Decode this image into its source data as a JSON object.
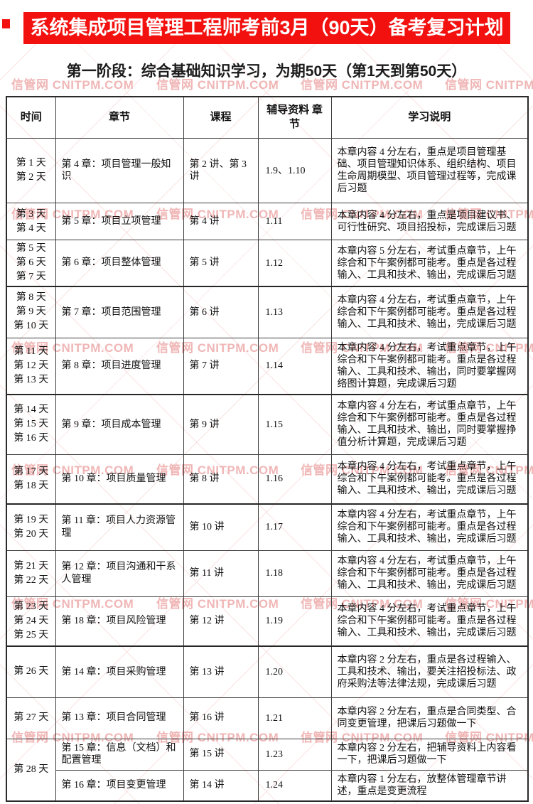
{
  "banner": {
    "title": "系统集成项目管理工程师考前3月（90天）备考复习计划",
    "bg_color": "#f2110f",
    "text_color": "#ffffff"
  },
  "subtitle": "第一阶段：综合基础知识学习，为期50天（第1天到第50天）",
  "watermark": {
    "text": "信管网 CNITPM.COM",
    "color": "#e47a7a"
  },
  "table": {
    "headers": [
      "时间",
      "章节",
      "课程",
      "辅导资料 章节",
      "学习说明"
    ],
    "rows": [
      {
        "time": [
          "第 1 天",
          "第 2 天"
        ],
        "chapter": "第 4 章：项目管理一般知识",
        "course": "第 2 讲、第 3 讲",
        "material": "1.9、1.10",
        "note": "本章内容 4 分左右，重点是项目管理基础、项目管理知识体系、组织结构、项目生命周期模型、项目管理过程等，完成课后习题"
      },
      {
        "time": [
          "第 3 天",
          "第 4 天"
        ],
        "chapter": "第 5 章：项目立项管理",
        "course": "第 4 讲",
        "material": "1.11",
        "note": "本章内容 4 分左右，重点是项目建议书、可行性研究、项目招投标，完成课后习题"
      },
      {
        "time": [
          "第 5 天",
          "第 6 天",
          "第 7 天"
        ],
        "chapter": "第 6 章：项目整体管理",
        "course": "第 5 讲",
        "material": "1.12",
        "note": "本章内容 5 分左右，考试重点章节，上午综合和下午案例都可能考。重点是各过程输入、工具和技术、输出，完成课后习题"
      },
      {
        "time": [
          "第 8 天",
          "第 9 天",
          "第 10 天"
        ],
        "chapter": "第 7 章：项目范围管理",
        "course": "第 6 讲",
        "material": "1.13",
        "note": "本章内容 4 分左右，考试重点章节，上午综合和下午案例都可能考。重点是各过程输入、工具和技术、输出，完成课后习题"
      },
      {
        "time": [
          "第 11 天",
          "第 12 天",
          "第 13 天"
        ],
        "chapter": "第 8 章：项目进度管理",
        "course": "第 7 讲",
        "material": "1.14",
        "note": "本章内容 4 分左右，考试重点章节，上午综合和下午案例都可能考。重点是各过程输入、工具和技术、输出，同时要掌握网络图计算题，完成课后习题"
      },
      {
        "time": [
          "第 14 天",
          "第 15 天",
          "第 16 天"
        ],
        "chapter": "第 9 章：项目成本管理",
        "course": "第 9 讲",
        "material": "1.15",
        "note": "本章内容 4 分左右，考试重点章节，上午综合和下午案例都可能考。重点是各过程输入、工具和技术、输出，同时要掌握挣值分析计算题，完成课后习题"
      },
      {
        "time": [
          "第 17 天",
          "第 18 天"
        ],
        "chapter": "第 10 章：项目质量管理",
        "course": "第 8 讲",
        "material": "1.16",
        "note": "本章内容 4 分左右，考试重点章节，上午综合和下午案例都可能考。重点是各过程输入、工具和技术、输出，完成课后习题"
      },
      {
        "time": [
          "第 19 天",
          "第 20 天"
        ],
        "chapter": "第 11 章：项目人力资源管理",
        "course": "第 10 讲",
        "material": "1.17",
        "note": "本章内容 4 分左右，考试重点章节，上午综合和下午案例都可能考。重点是各过程输入、工具和技术、输出，完成课后习题"
      },
      {
        "time": [
          "第 21 天",
          "第 22 天"
        ],
        "chapter": "第 12 章：项目沟通和干系人管理",
        "course": "第 11 讲",
        "material": "1.18",
        "note": "本章内容 4 分左右，考试重点章节，上午综合和下午案例都可能考。重点是各过程输入、工具和技术、输出，完成课后习题"
      },
      {
        "time": [
          "第 23 天",
          "第 24 天",
          "第 25 天"
        ],
        "chapter": "第 18 章：项目风险管理",
        "course": "第 12 讲",
        "material": "1.19",
        "note": "本章内容 4 分左右，考试重点章节，上午综合和下午案例都可能考。重点是各过程输入、工具和技术、输出，完成课后习题"
      },
      {
        "time": [
          "第 26 天"
        ],
        "chapter": "第 14 章：项目采购管理",
        "course": "第 13 讲",
        "material": "1.20",
        "note": "本章内容 2 分左右，重点是各过程输入、工具和技术、输出，要关注招投标法、政府采购法等法律法规，完成课后习题"
      },
      {
        "time": [
          "第 27 天"
        ],
        "chapter": "第 13 章：项目合同管理",
        "course": "第 16 讲",
        "material": "1.21",
        "note": "本章内容 2 分左右，重点是合同类型、合同变更管理，把课后习题做一下"
      },
      {
        "time": [
          "第 28 天"
        ],
        "time_rowspan": 2,
        "chapter": "第 15 章：信息（文档）和配置管理",
        "course": "第 15 讲",
        "material": "1.23",
        "note": "本章内容 2 分左右，把辅导资料上内容看一下，把课后习题做一下"
      },
      {
        "time": null,
        "chapter": "第 16 章：项目变更管理",
        "course": "第 14 讲",
        "material": "1.24",
        "note": "本章内容 1 分左右，放整体管理章节讲述，重点是变更流程"
      }
    ]
  }
}
